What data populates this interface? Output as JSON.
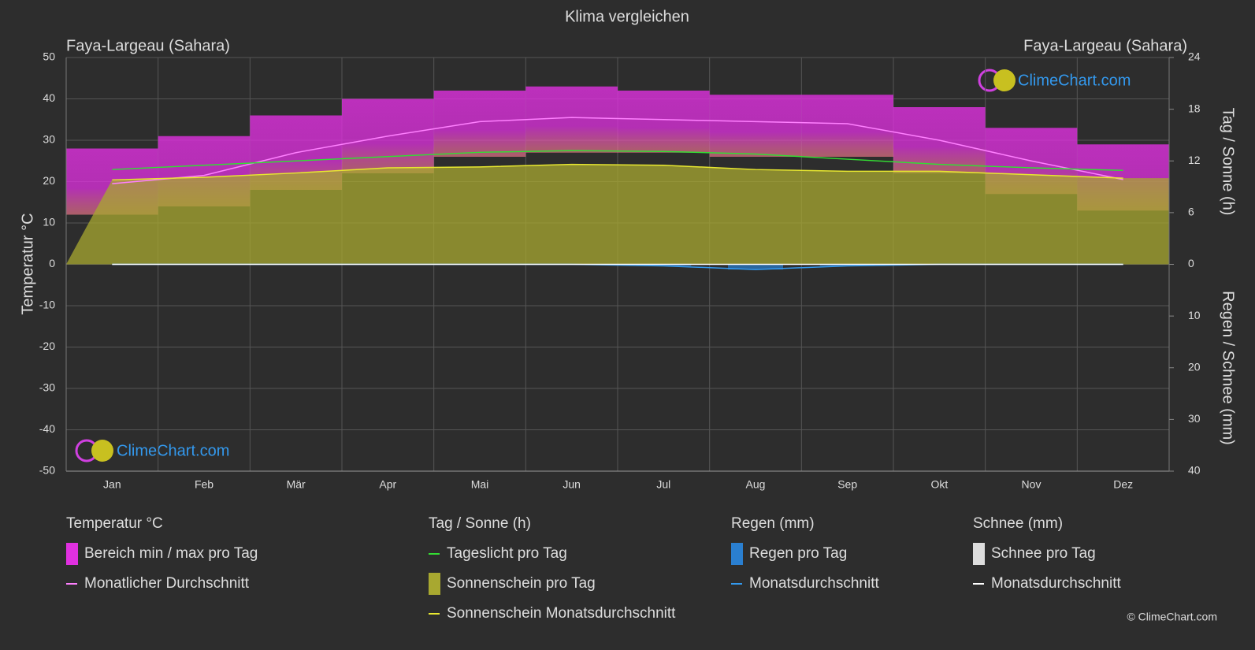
{
  "chart_data": {
    "type": "climate",
    "title": "Klima vergleichen",
    "location_left": "Faya-Largeau (Sahara)",
    "location_right": "Faya-Largeau (Sahara)",
    "watermark": "ClimeChart.com",
    "copyright": "© ClimeChart.com",
    "categories": [
      "Jan",
      "Feb",
      "Mär",
      "Apr",
      "Mai",
      "Jun",
      "Jul",
      "Aug",
      "Sep",
      "Okt",
      "Nov",
      "Dez"
    ],
    "ylabel": "Temperatur °C",
    "ylim": [
      -50,
      50
    ],
    "yticks": [
      -50,
      -40,
      -30,
      -20,
      -10,
      0,
      10,
      20,
      30,
      40,
      50
    ],
    "y2label": "Tag / Sonne (h)",
    "y2lim": [
      0,
      24
    ],
    "y2ticks": [
      0,
      6,
      12,
      18,
      24
    ],
    "y3label": "Regen / Schnee (mm)",
    "y3lim": [
      0,
      40
    ],
    "y3ticks": [
      10,
      20,
      30,
      40
    ],
    "grid": true,
    "groups": [
      {
        "title": "Temperatur °C",
        "series": [
          {
            "name": "Bereich min / max pro Tag",
            "kind": "band",
            "color": "#e030e0",
            "min": [
              12,
              14,
              18,
              22,
              26,
              27,
              27,
              26,
              26,
              22,
              17,
              13
            ],
            "max": [
              28,
              31,
              36,
              40,
              42,
              43,
              42,
              41,
              41,
              38,
              33,
              29
            ]
          },
          {
            "name": "Monatlicher Durchschnitt",
            "kind": "line",
            "color": "#ff80ff",
            "values": [
              19.5,
              21.5,
              27,
              31,
              34.5,
              35.5,
              35,
              34.5,
              34,
              30,
              25,
              20.5
            ]
          }
        ]
      },
      {
        "title": "Tag / Sonne (h)",
        "series": [
          {
            "name": "Tageslicht pro Tag",
            "kind": "line",
            "axis": "y2",
            "color": "#33dd33",
            "values": [
              11.0,
              11.5,
              12.0,
              12.5,
              13.0,
              13.2,
              13.1,
              12.8,
              12.2,
              11.6,
              11.2,
              10.9
            ]
          },
          {
            "name": "Sonnenschein pro Tag",
            "kind": "area",
            "axis": "y2",
            "color": "#a8a830",
            "values": [
              9.8,
              10.1,
              10.6,
              11.2,
              11.3,
              11.6,
              11.5,
              11.0,
              10.8,
              10.8,
              10.4,
              10.0
            ]
          },
          {
            "name": "Sonnenschein Monatsdurchschnitt",
            "kind": "line",
            "axis": "y2",
            "color": "#e8e830",
            "values": [
              9.8,
              10.1,
              10.6,
              11.2,
              11.3,
              11.6,
              11.5,
              11.0,
              10.8,
              10.8,
              10.4,
              10.0
            ]
          }
        ]
      },
      {
        "title": "Regen (mm)",
        "series": [
          {
            "name": "Regen pro Tag",
            "kind": "bars",
            "axis": "y3",
            "color": "#2a7fd0",
            "values": [
              0,
              0,
              0,
              0,
              0,
              0,
              0.3,
              1.0,
              0.3,
              0,
              0,
              0
            ]
          },
          {
            "name": "Monatsdurchschnitt",
            "kind": "line",
            "axis": "y3",
            "color": "#3399ee",
            "values": [
              0,
              0,
              0,
              0,
              0,
              0,
              0.3,
              1.0,
              0.3,
              0,
              0,
              0
            ]
          }
        ]
      },
      {
        "title": "Schnee (mm)",
        "series": [
          {
            "name": "Schnee pro Tag",
            "kind": "bars",
            "axis": "y3",
            "color": "#dddddd",
            "values": [
              0,
              0,
              0,
              0,
              0,
              0,
              0,
              0,
              0,
              0,
              0,
              0
            ]
          },
          {
            "name": "Monatsdurchschnitt",
            "kind": "line",
            "axis": "y3",
            "color": "#ffffff",
            "values": [
              0,
              0,
              0,
              0,
              0,
              0,
              0,
              0,
              0,
              0,
              0,
              0
            ]
          }
        ]
      }
    ]
  }
}
